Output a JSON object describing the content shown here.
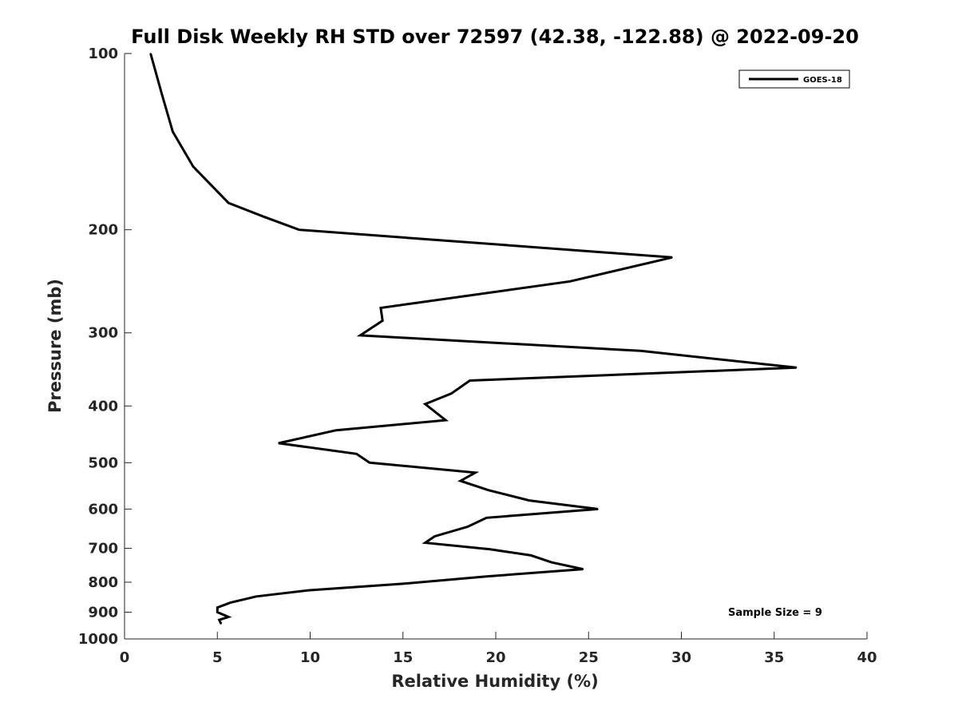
{
  "chart_data": {
    "type": "line",
    "title": "Full Disk Weekly RH STD over 72597 (42.38, -122.88) @ 2022-09-20",
    "xlabel": "Relative Humidity (%)",
    "ylabel": "Pressure (mb)",
    "xlim": [
      0,
      40
    ],
    "ylim": [
      100,
      1000
    ],
    "y_scale": "log",
    "y_reversed": true,
    "x_ticks": [
      0,
      5,
      10,
      15,
      20,
      25,
      30,
      35,
      40
    ],
    "y_ticks": [
      100,
      200,
      300,
      400,
      500,
      600,
      700,
      800,
      900,
      1000
    ],
    "grid": false,
    "legend_position": "top-right",
    "annotation": "Sample Size = 9",
    "series": [
      {
        "name": "GOES-18",
        "color": "#000000",
        "points": [
          [
            1.4,
            100
          ],
          [
            2.0,
            117
          ],
          [
            2.6,
            136
          ],
          [
            3.7,
            156
          ],
          [
            5.6,
            180
          ],
          [
            7.5,
            190
          ],
          [
            9.4,
            200
          ],
          [
            29.5,
            223
          ],
          [
            24.0,
            245
          ],
          [
            13.8,
            272
          ],
          [
            13.9,
            286
          ],
          [
            12.7,
            303
          ],
          [
            27.8,
            322
          ],
          [
            36.2,
            344
          ],
          [
            18.6,
            362
          ],
          [
            17.6,
            381
          ],
          [
            16.2,
            397
          ],
          [
            17.3,
            423
          ],
          [
            11.4,
            440
          ],
          [
            8.3,
            463
          ],
          [
            12.5,
            483
          ],
          [
            13.2,
            500
          ],
          [
            18.9,
            520
          ],
          [
            18.1,
            537
          ],
          [
            19.6,
            557
          ],
          [
            21.8,
            580
          ],
          [
            25.5,
            600
          ],
          [
            19.5,
            621
          ],
          [
            18.5,
            643
          ],
          [
            16.7,
            668
          ],
          [
            16.2,
            685
          ],
          [
            19.7,
            703
          ],
          [
            21.9,
            720
          ],
          [
            23.0,
            740
          ],
          [
            24.7,
            760
          ],
          [
            19.5,
            782
          ],
          [
            15.0,
            805
          ],
          [
            9.9,
            826
          ],
          [
            7.1,
            846
          ],
          [
            5.7,
            867
          ],
          [
            5.0,
            884
          ],
          [
            5.0,
            900
          ],
          [
            5.6,
            917
          ],
          [
            5.1,
            928
          ],
          [
            5.2,
            942
          ]
        ]
      }
    ]
  }
}
